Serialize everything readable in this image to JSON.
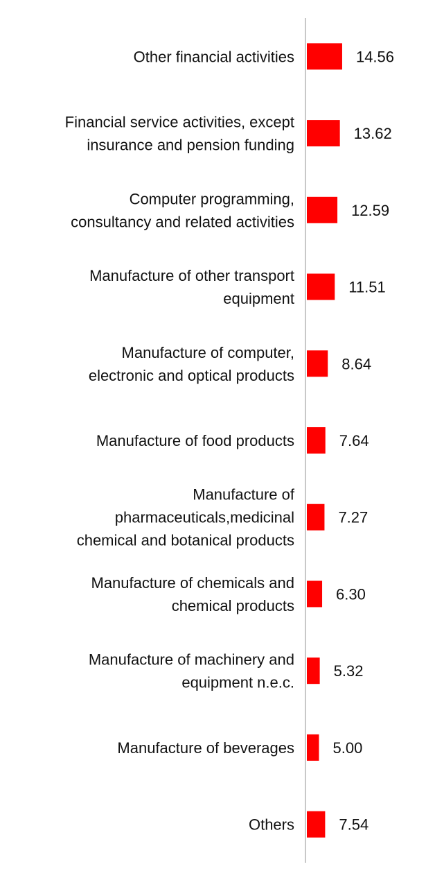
{
  "chart_data": {
    "type": "bar",
    "orientation": "horizontal",
    "categories": [
      [
        "Other financial activities"
      ],
      [
        "Financial service activities, except",
        "insurance and pension funding"
      ],
      [
        "Computer programming,",
        "consultancy and related activities"
      ],
      [
        "Manufacture of other transport",
        "equipment"
      ],
      [
        "Manufacture of computer,",
        "electronic and optical products"
      ],
      [
        "Manufacture of food products"
      ],
      [
        "Manufacture of",
        "pharmaceuticals,medicinal",
        "chemical and botanical products"
      ],
      [
        "Manufacture of chemicals and",
        "chemical products"
      ],
      [
        "Manufacture of machinery and",
        "equipment n.e.c."
      ],
      [
        "Manufacture of beverages"
      ],
      [
        "Others"
      ]
    ],
    "values": [
      14.56,
      13.62,
      12.59,
      11.51,
      8.64,
      7.64,
      7.27,
      6.3,
      5.32,
      5.0,
      7.54
    ],
    "value_labels": [
      "14.56",
      "13.62",
      "12.59",
      "11.51",
      "8.64",
      "7.64",
      "7.27",
      "6.30",
      "5.32",
      "5.00",
      "7.54"
    ],
    "bar_color": "#ff0000",
    "axis_color": "#c8c8c8",
    "grid": false,
    "legend": "none"
  }
}
